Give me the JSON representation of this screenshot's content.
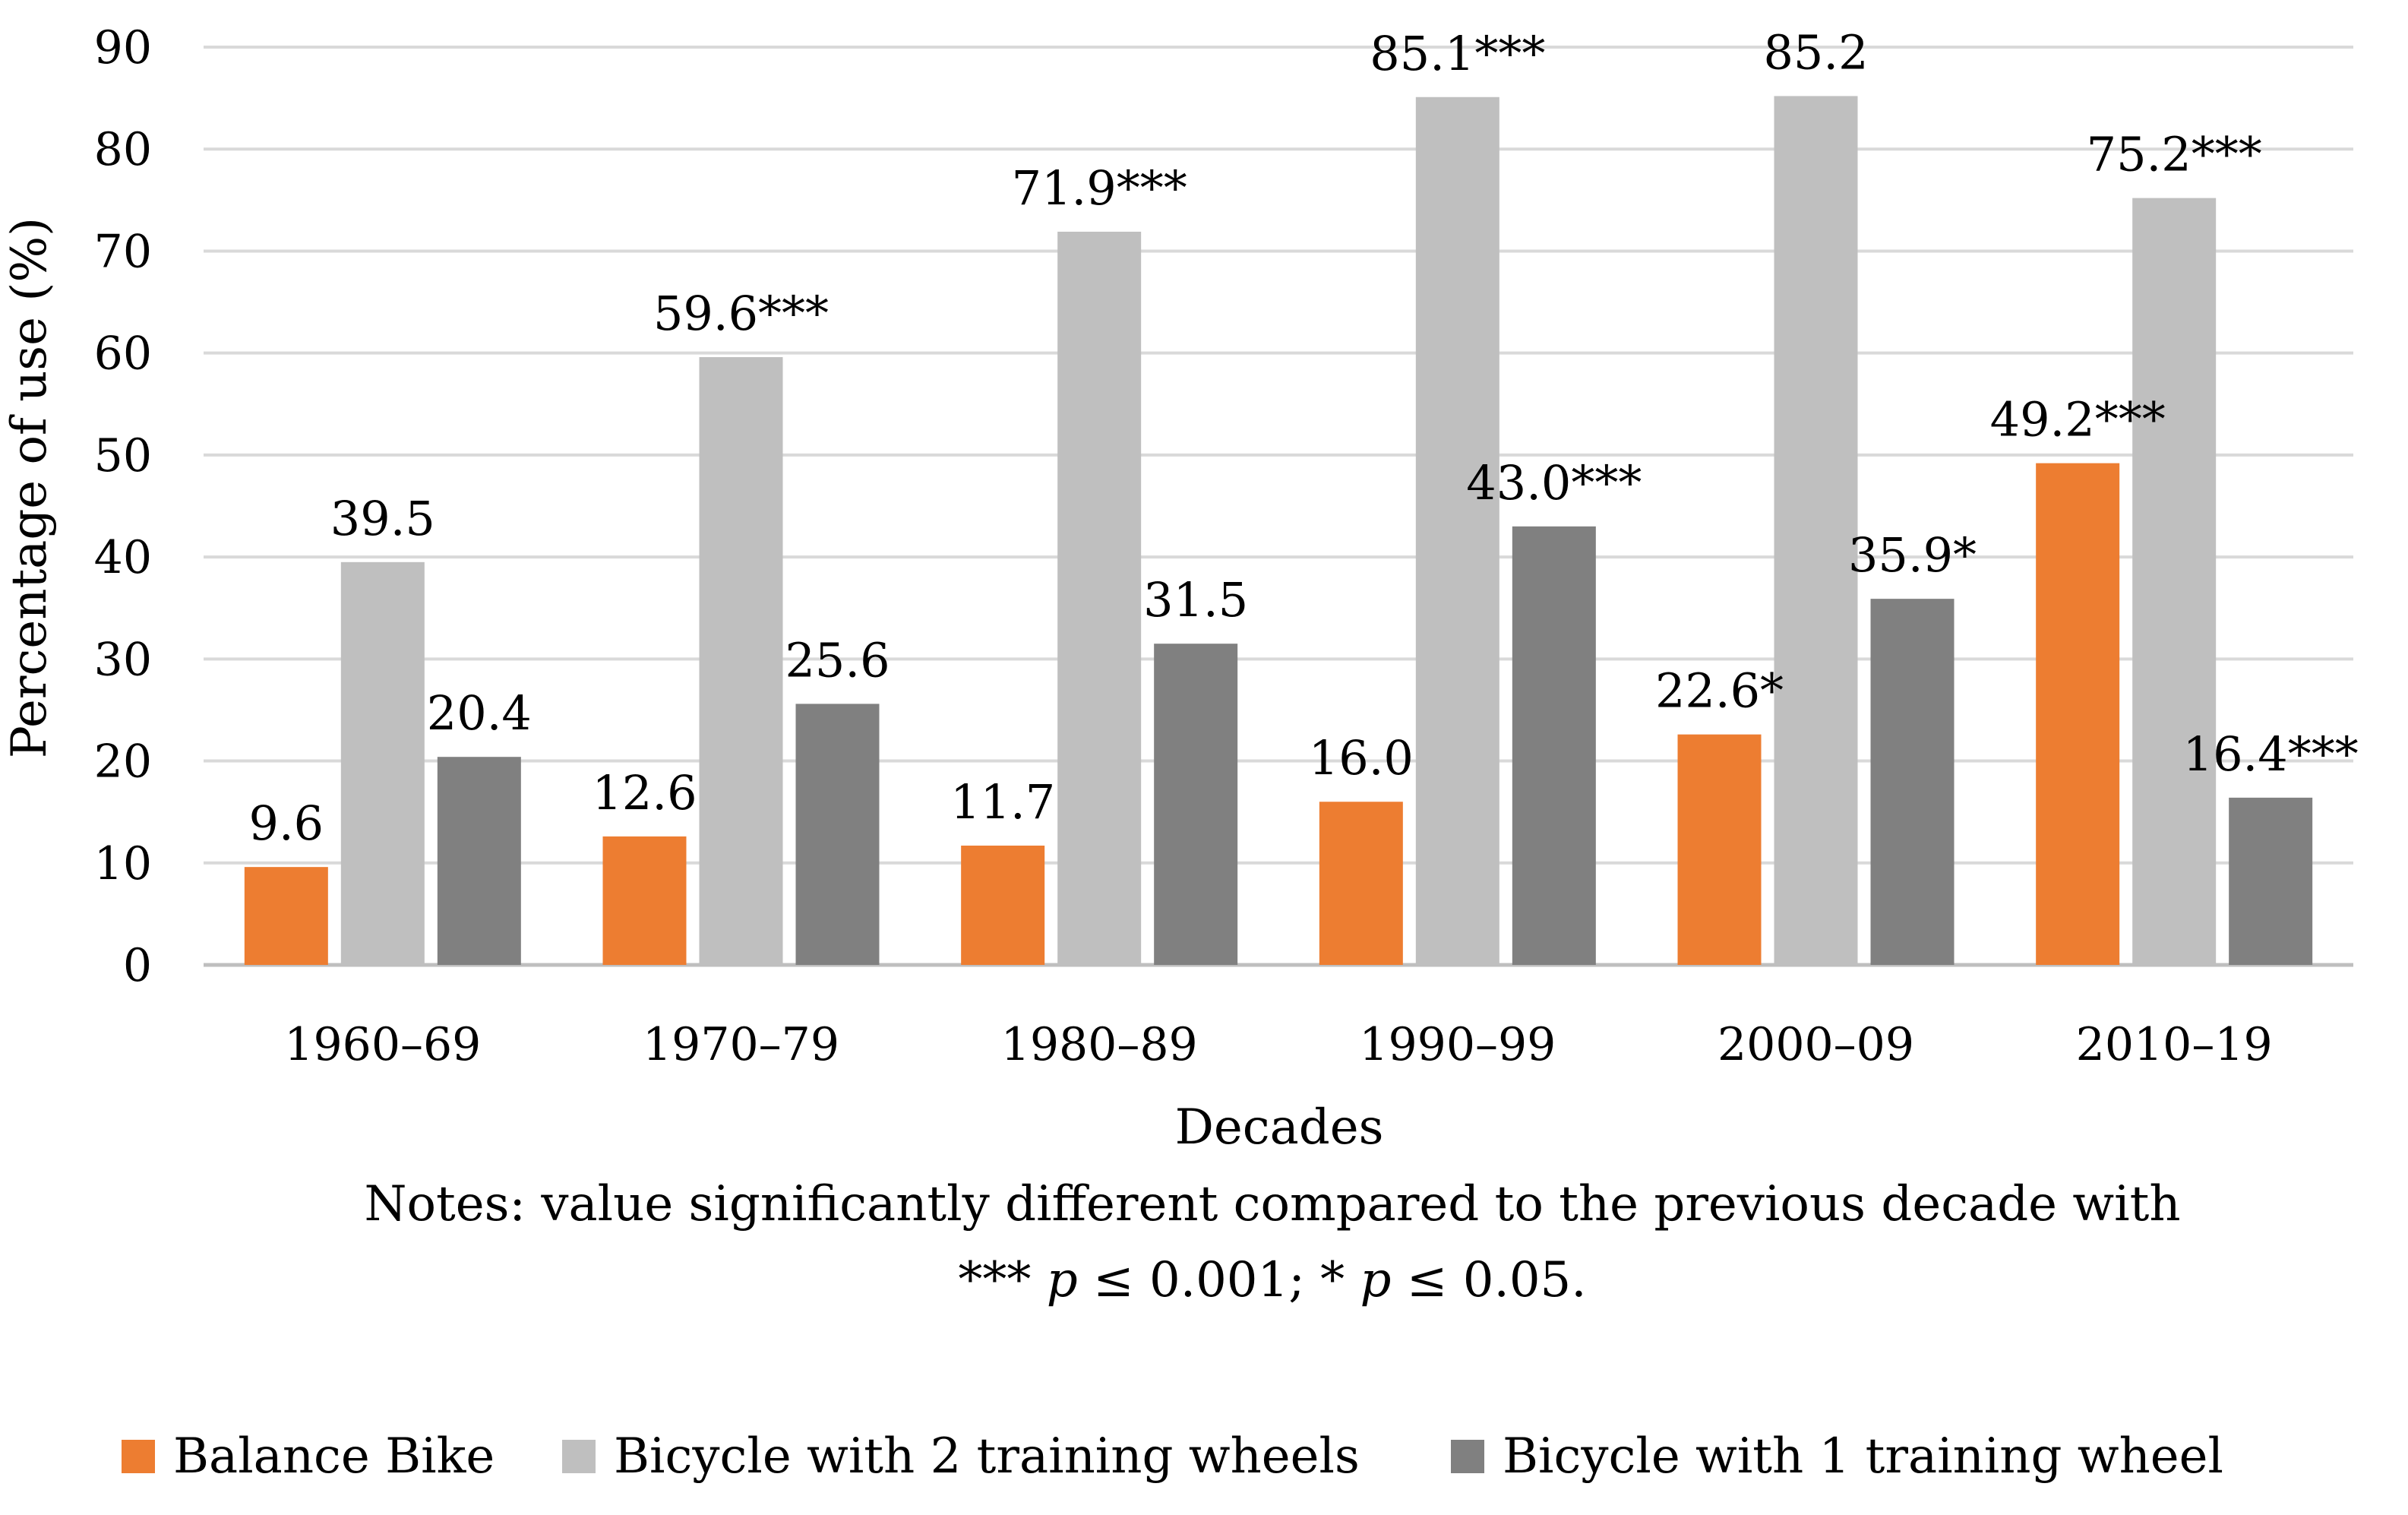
{
  "chart_data": {
    "type": "bar",
    "xlabel": "Decades",
    "ylabel": "Percentage of use (%)",
    "ylim": [
      0,
      90
    ],
    "yticks": [
      0,
      10,
      20,
      30,
      40,
      50,
      60,
      70,
      80,
      90
    ],
    "grid": true,
    "legend_position": "bottom",
    "categories": [
      "1960–69",
      "1970–79",
      "1980–89",
      "1990–99",
      "2000–09",
      "2010–19"
    ],
    "series": [
      {
        "name": "Balance Bike",
        "color": "#ED7D31",
        "values": [
          9.6,
          12.6,
          11.7,
          16.0,
          22.6,
          49.2
        ],
        "labels": [
          "9.6",
          "12.6",
          "11.7",
          "16.0",
          "22.6*",
          "49.2***"
        ]
      },
      {
        "name": "Bicycle with 2 training wheels",
        "color": "#BFBFBF",
        "values": [
          39.5,
          59.6,
          71.9,
          85.1,
          85.2,
          75.2
        ],
        "labels": [
          "39.5",
          "59.6***",
          "71.9***",
          "85.1***",
          "85.2",
          "75.2***"
        ]
      },
      {
        "name": "Bicycle with 1 training wheel",
        "color": "#808080",
        "values": [
          20.4,
          25.6,
          31.5,
          43.0,
          35.9,
          16.4
        ],
        "labels": [
          "20.4",
          "25.6",
          "31.5",
          "43.0***",
          "35.9*",
          "16.4***"
        ]
      }
    ],
    "notes": {
      "line1": "Notes: value significantly different compared to the previous decade with",
      "line2_part1": "*** ",
      "line2_p1": "p",
      "line2_part2": " ≤ 0.001; * ",
      "line2_p2": "p",
      "line2_part3": " ≤ 0.05."
    }
  }
}
